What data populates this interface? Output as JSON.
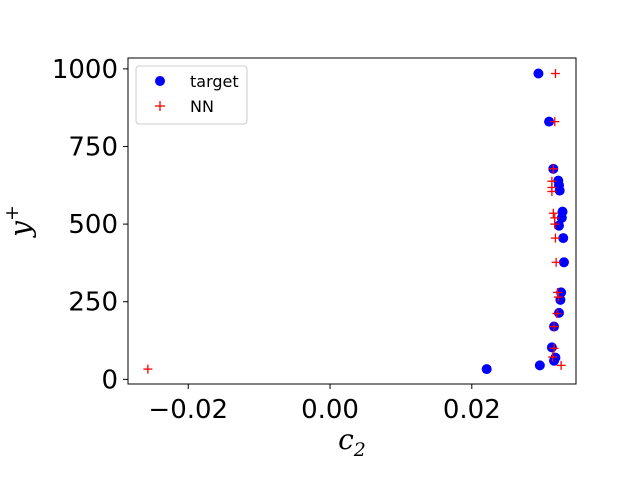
{
  "chart_data": {
    "type": "scatter",
    "xlabel": "c",
    "xlabel_sub": "2",
    "ylabel": "y",
    "ylabel_sup": "+",
    "xlim": [
      -0.0285,
      0.0347
    ],
    "ylim": [
      -15,
      1035
    ],
    "xticks": [
      -0.02,
      0.0,
      0.02
    ],
    "xtick_labels": [
      "−0.02",
      "0.00",
      "0.02"
    ],
    "yticks": [
      0,
      250,
      500,
      750,
      1000
    ],
    "ytick_labels": [
      "0",
      "250",
      "500",
      "750",
      "1000"
    ],
    "legend": {
      "placement": "top-left",
      "entries": [
        "target",
        "NN"
      ]
    },
    "series": [
      {
        "name": "target",
        "marker": "circle",
        "color": "#0000ff",
        "points": [
          [
            0.0221,
            33
          ],
          [
            0.0296,
            45
          ],
          [
            0.0318,
            70
          ],
          [
            0.0316,
            60
          ],
          [
            0.0313,
            103
          ],
          [
            0.0316,
            170
          ],
          [
            0.0323,
            214
          ],
          [
            0.0325,
            256
          ],
          [
            0.0326,
            280
          ],
          [
            0.033,
            377
          ],
          [
            0.0329,
            455
          ],
          [
            0.0323,
            495
          ],
          [
            0.0327,
            520
          ],
          [
            0.0328,
            540
          ],
          [
            0.0324,
            608
          ],
          [
            0.0323,
            625
          ],
          [
            0.0322,
            640
          ],
          [
            0.0315,
            678
          ],
          [
            0.0309,
            830
          ],
          [
            0.0294,
            985
          ]
        ]
      },
      {
        "name": "NN",
        "marker": "plus",
        "color": "#ff0000",
        "points": [
          [
            -0.0257,
            33
          ],
          [
            0.0326,
            45
          ],
          [
            0.0314,
            72
          ],
          [
            0.0316,
            100
          ],
          [
            0.0316,
            170
          ],
          [
            0.032,
            212
          ],
          [
            0.0322,
            265
          ],
          [
            0.0321,
            280
          ],
          [
            0.0319,
            377
          ],
          [
            0.0318,
            455
          ],
          [
            0.0317,
            500
          ],
          [
            0.0317,
            520
          ],
          [
            0.0315,
            535
          ],
          [
            0.0313,
            605
          ],
          [
            0.0313,
            618
          ],
          [
            0.0313,
            638
          ],
          [
            0.0315,
            678
          ],
          [
            0.0317,
            830
          ],
          [
            0.0318,
            985
          ]
        ]
      }
    ]
  }
}
